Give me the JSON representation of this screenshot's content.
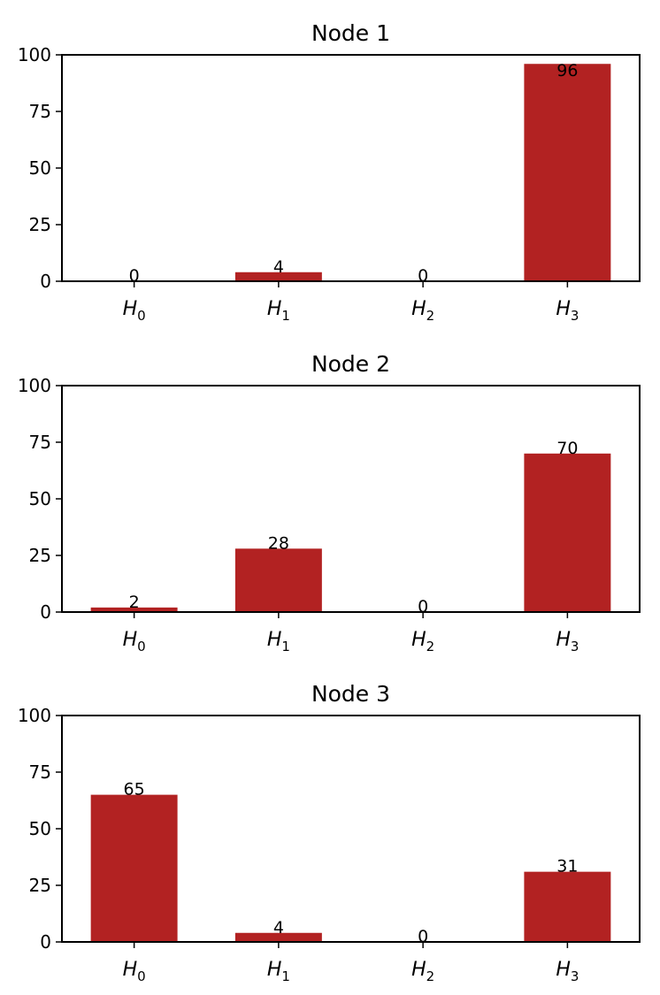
{
  "chart_data": [
    {
      "type": "bar",
      "title": "Node 1",
      "categories": [
        {
          "base": "H",
          "sub": "0"
        },
        {
          "base": "H",
          "sub": "1"
        },
        {
          "base": "H",
          "sub": "2"
        },
        {
          "base": "H",
          "sub": "3"
        }
      ],
      "values": [
        0,
        4,
        0,
        96
      ],
      "data_labels": [
        "0",
        "4",
        "0",
        "96"
      ],
      "ylim": [
        0,
        100
      ],
      "yticks": [
        0,
        25,
        50,
        75,
        100
      ],
      "color": "#b22222",
      "grid": false,
      "legend": false
    },
    {
      "type": "bar",
      "title": "Node 2",
      "categories": [
        {
          "base": "H",
          "sub": "0"
        },
        {
          "base": "H",
          "sub": "1"
        },
        {
          "base": "H",
          "sub": "2"
        },
        {
          "base": "H",
          "sub": "3"
        }
      ],
      "values": [
        2,
        28,
        0,
        70
      ],
      "data_labels": [
        "2",
        "28",
        "0",
        "70"
      ],
      "ylim": [
        0,
        100
      ],
      "yticks": [
        0,
        25,
        50,
        75,
        100
      ],
      "color": "#b22222",
      "grid": false,
      "legend": false
    },
    {
      "type": "bar",
      "title": "Node 3",
      "categories": [
        {
          "base": "H",
          "sub": "0"
        },
        {
          "base": "H",
          "sub": "1"
        },
        {
          "base": "H",
          "sub": "2"
        },
        {
          "base": "H",
          "sub": "3"
        }
      ],
      "values": [
        65,
        4,
        0,
        31
      ],
      "data_labels": [
        "65",
        "4",
        "0",
        "31"
      ],
      "ylim": [
        0,
        100
      ],
      "yticks": [
        0,
        25,
        50,
        75,
        100
      ],
      "color": "#b22222",
      "grid": false,
      "legend": false
    }
  ]
}
